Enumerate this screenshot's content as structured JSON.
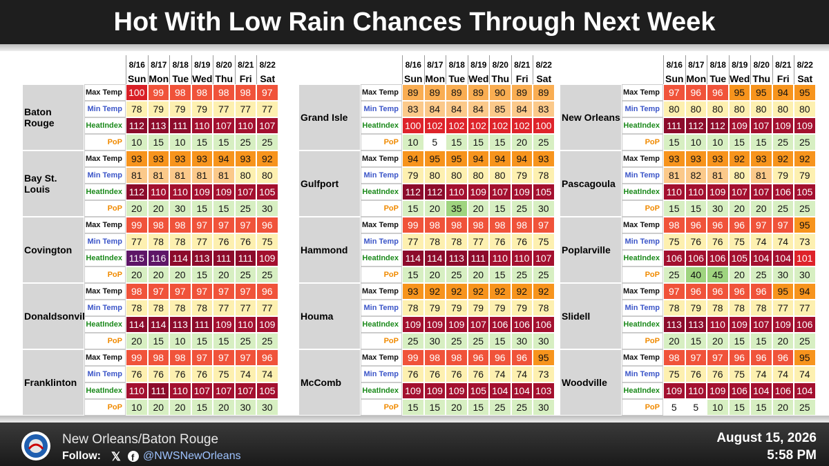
{
  "header": {
    "title": "Hot With Low Rain Chances Through Next Week"
  },
  "dates": [
    "8/16",
    "8/17",
    "8/18",
    "8/19",
    "8/20",
    "8/21",
    "8/22"
  ],
  "days": [
    "Sun",
    "Mon",
    "Tue",
    "Wed",
    "Thu",
    "Fri",
    "Sat"
  ],
  "row_labels": [
    "Max Temp",
    "Min Temp",
    "HeatIndex",
    "PoP"
  ],
  "panels": [
    {
      "cities": [
        {
          "name": "Baton Rouge",
          "rows": [
            [
              100,
              99,
              98,
              98,
              98,
              98,
              97
            ],
            [
              78,
              79,
              79,
              79,
              77,
              77,
              77
            ],
            [
              112,
              113,
              111,
              110,
              107,
              110,
              107
            ],
            [
              10,
              15,
              10,
              15,
              15,
              25,
              25
            ]
          ]
        },
        {
          "name": "Bay St. Louis",
          "rows": [
            [
              93,
              93,
              93,
              93,
              94,
              93,
              92
            ],
            [
              81,
              81,
              81,
              81,
              81,
              80,
              80
            ],
            [
              112,
              110,
              110,
              109,
              109,
              107,
              105
            ],
            [
              20,
              20,
              30,
              15,
              15,
              25,
              30
            ]
          ]
        },
        {
          "name": "Covington",
          "rows": [
            [
              99,
              98,
              98,
              97,
              97,
              97,
              96
            ],
            [
              77,
              78,
              78,
              77,
              76,
              76,
              75
            ],
            [
              115,
              116,
              114,
              113,
              111,
              111,
              109
            ],
            [
              20,
              20,
              20,
              15,
              20,
              25,
              25
            ]
          ]
        },
        {
          "name": "Donaldsonville",
          "rows": [
            [
              98,
              97,
              97,
              97,
              97,
              97,
              96
            ],
            [
              78,
              78,
              78,
              78,
              77,
              77,
              77
            ],
            [
              114,
              114,
              113,
              111,
              109,
              110,
              109
            ],
            [
              20,
              15,
              10,
              15,
              15,
              25,
              25
            ]
          ]
        },
        {
          "name": "Franklinton",
          "rows": [
            [
              99,
              98,
              98,
              97,
              97,
              97,
              96
            ],
            [
              76,
              76,
              76,
              76,
              75,
              74,
              74
            ],
            [
              110,
              111,
              110,
              107,
              107,
              107,
              105
            ],
            [
              10,
              20,
              20,
              15,
              20,
              30,
              30
            ]
          ]
        }
      ]
    },
    {
      "cities": [
        {
          "name": "Grand Isle",
          "rows": [
            [
              89,
              89,
              89,
              89,
              90,
              89,
              89
            ],
            [
              83,
              84,
              84,
              84,
              85,
              84,
              83
            ],
            [
              100,
              102,
              102,
              102,
              102,
              102,
              100
            ],
            [
              10,
              5,
              15,
              15,
              15,
              20,
              25
            ]
          ]
        },
        {
          "name": "Gulfport",
          "rows": [
            [
              94,
              95,
              95,
              94,
              94,
              94,
              93
            ],
            [
              79,
              80,
              80,
              80,
              80,
              79,
              78
            ],
            [
              112,
              112,
              110,
              109,
              107,
              109,
              105
            ],
            [
              15,
              20,
              35,
              20,
              15,
              25,
              30
            ]
          ]
        },
        {
          "name": "Hammond",
          "rows": [
            [
              99,
              98,
              98,
              98,
              98,
              98,
              97
            ],
            [
              77,
              78,
              78,
              77,
              76,
              76,
              75
            ],
            [
              114,
              114,
              113,
              111,
              110,
              110,
              107
            ],
            [
              15,
              20,
              25,
              20,
              15,
              25,
              25
            ]
          ]
        },
        {
          "name": "Houma",
          "rows": [
            [
              93,
              92,
              92,
              92,
              92,
              92,
              92
            ],
            [
              78,
              79,
              79,
              79,
              79,
              79,
              78
            ],
            [
              109,
              109,
              109,
              107,
              106,
              106,
              106
            ],
            [
              25,
              30,
              25,
              25,
              15,
              30,
              30
            ]
          ]
        },
        {
          "name": "McComb",
          "rows": [
            [
              99,
              98,
              98,
              96,
              96,
              96,
              95
            ],
            [
              76,
              76,
              76,
              76,
              74,
              74,
              73
            ],
            [
              109,
              109,
              109,
              105,
              104,
              104,
              103
            ],
            [
              15,
              15,
              20,
              15,
              25,
              25,
              30
            ]
          ]
        }
      ]
    },
    {
      "cities": [
        {
          "name": "New Orleans",
          "rows": [
            [
              97,
              96,
              96,
              95,
              95,
              94,
              95
            ],
            [
              80,
              80,
              80,
              80,
              80,
              80,
              80
            ],
            [
              111,
              112,
              112,
              109,
              107,
              109,
              109
            ],
            [
              15,
              10,
              10,
              15,
              15,
              25,
              25
            ]
          ]
        },
        {
          "name": "Pascagoula",
          "rows": [
            [
              93,
              93,
              93,
              92,
              93,
              92,
              92
            ],
            [
              81,
              82,
              81,
              80,
              81,
              79,
              79
            ],
            [
              110,
              110,
              109,
              107,
              107,
              106,
              105
            ],
            [
              15,
              15,
              30,
              20,
              20,
              25,
              25
            ]
          ]
        },
        {
          "name": "Poplarville",
          "rows": [
            [
              98,
              96,
              96,
              96,
              97,
              97,
              95
            ],
            [
              75,
              76,
              76,
              75,
              74,
              74,
              73
            ],
            [
              106,
              106,
              106,
              105,
              104,
              104,
              101
            ],
            [
              25,
              40,
              45,
              20,
              25,
              30,
              30
            ]
          ]
        },
        {
          "name": "Slidell",
          "rows": [
            [
              97,
              96,
              96,
              96,
              96,
              95,
              94
            ],
            [
              78,
              79,
              78,
              78,
              78,
              77,
              77
            ],
            [
              113,
              113,
              110,
              109,
              107,
              109,
              106
            ],
            [
              20,
              15,
              20,
              15,
              15,
              20,
              25
            ]
          ]
        },
        {
          "name": "Woodville",
          "rows": [
            [
              98,
              97,
              97,
              96,
              96,
              96,
              95
            ],
            [
              75,
              76,
              76,
              75,
              74,
              74,
              74
            ],
            [
              109,
              110,
              109,
              106,
              104,
              106,
              104
            ],
            [
              5,
              5,
              10,
              15,
              15,
              20,
              25
            ]
          ]
        }
      ]
    }
  ],
  "footer": {
    "office": "New Orleans/Baton Rouge",
    "follow": "Follow:",
    "handle": "@NWSNewOrleans",
    "date": "August 15, 2026",
    "time": "5:58 PM"
  }
}
